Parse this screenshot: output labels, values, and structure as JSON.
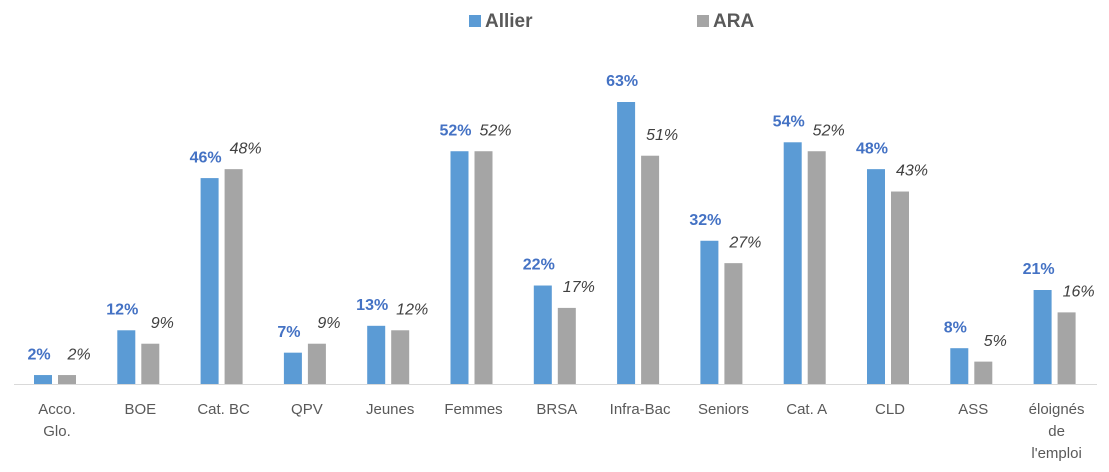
{
  "chart_data": {
    "type": "bar",
    "categories": [
      "Acco. Glo.",
      "BOE",
      "Cat. BC",
      "QPV",
      "Jeunes",
      "Femmes",
      "BRSA",
      "Infra-Bac",
      "Seniors",
      "Cat. A",
      "CLD",
      "ASS",
      "éloignés de l'emploi"
    ],
    "series": [
      {
        "name": "Allier",
        "color": "#5b9bd5",
        "values": [
          2,
          12,
          46,
          7,
          13,
          52,
          22,
          63,
          32,
          54,
          48,
          8,
          21
        ],
        "value_labels": [
          "2%",
          "12%",
          "46%",
          "7%",
          "13%",
          "52%",
          "22%",
          "63%",
          "32%",
          "54%",
          "48%",
          "8%",
          "21%"
        ]
      },
      {
        "name": "ARA",
        "color": "#a5a5a5",
        "values": [
          2,
          9,
          48,
          9,
          12,
          52,
          17,
          51,
          27,
          52,
          43,
          5,
          16
        ],
        "value_labels": [
          "2%",
          "9%",
          "48%",
          "9%",
          "12%",
          "52%",
          "17%",
          "51%",
          "27%",
          "52%",
          "43%",
          "5%",
          "16%"
        ]
      }
    ],
    "legend": "top"
  }
}
